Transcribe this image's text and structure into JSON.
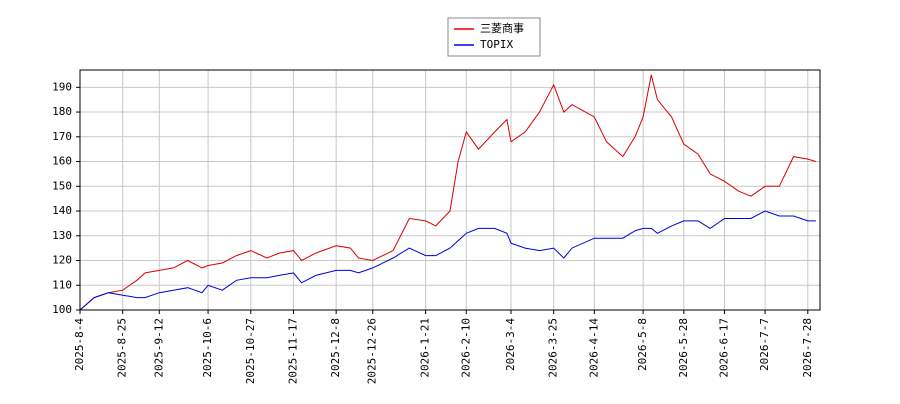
{
  "chart_data": {
    "type": "line",
    "x": [
      "2025-8-4",
      "2025-8-11",
      "2025-8-18",
      "2025-8-25",
      "2025-9-1",
      "2025-9-5",
      "2025-9-12",
      "2025-9-19",
      "2025-9-26",
      "2025-10-3",
      "2025-10-6",
      "2025-10-13",
      "2025-10-20",
      "2025-10-27",
      "2025-11-4",
      "2025-11-10",
      "2025-11-17",
      "2025-11-21",
      "2025-11-28",
      "2025-12-8",
      "2025-12-15",
      "2025-12-19",
      "2025-12-26",
      "2026-1-5",
      "2026-1-13",
      "2026-1-21",
      "2026-1-26",
      "2026-2-2",
      "2026-2-6",
      "2026-2-10",
      "2026-2-16",
      "2026-2-24",
      "2026-3-2",
      "2026-3-4",
      "2026-3-11",
      "2026-3-18",
      "2026-3-25",
      "2026-3-30",
      "2026-4-3",
      "2026-4-14",
      "2026-4-20",
      "2026-4-28",
      "2026-5-4",
      "2026-5-8",
      "2026-5-12",
      "2026-5-15",
      "2026-5-22",
      "2026-5-28",
      "2026-6-4",
      "2026-6-10",
      "2026-6-17",
      "2026-6-24",
      "2026-6-30",
      "2026-7-7",
      "2026-7-14",
      "2026-7-21",
      "2026-7-28",
      "2026-8-1"
    ],
    "series": [
      {
        "name": "三菱商事",
        "color": "#dd0000",
        "values": [
          100,
          105,
          107,
          108,
          112,
          115,
          116,
          117,
          120,
          117,
          118,
          119,
          122,
          124,
          121,
          123,
          124,
          120,
          123,
          126,
          125,
          121,
          120,
          124,
          137,
          136,
          134,
          140,
          160,
          172,
          165,
          172,
          177,
          168,
          172,
          180,
          191,
          180,
          183,
          178,
          168,
          162,
          170,
          178,
          195,
          185,
          178,
          167,
          163,
          155,
          152,
          148,
          146,
          150,
          150,
          162,
          161,
          160
        ]
      },
      {
        "name": "TOPIX",
        "color": "#0000dd",
        "values": [
          100,
          105,
          107,
          106,
          105,
          105,
          107,
          108,
          109,
          107,
          110,
          108,
          112,
          113,
          113,
          114,
          115,
          111,
          114,
          116,
          116,
          115,
          117,
          121,
          125,
          122,
          122,
          125,
          128,
          131,
          133,
          133,
          131,
          127,
          125,
          124,
          125,
          121,
          125,
          129,
          129,
          129,
          132,
          133,
          133,
          131,
          134,
          136,
          136,
          133,
          137,
          137,
          137,
          140,
          138,
          138,
          136,
          136
        ]
      }
    ],
    "xlim": [
      "2025-8-4",
      "2026-8-3"
    ],
    "xticks": [
      "2025-8-4",
      "2025-8-25",
      "2025-9-12",
      "2025-10-6",
      "2025-10-27",
      "2025-11-17",
      "2025-12-8",
      "2025-12-26",
      "2026-1-21",
      "2026-2-10",
      "2026-3-4",
      "2026-3-25",
      "2026-4-14",
      "2026-5-8",
      "2026-5-28",
      "2026-6-17",
      "2026-7-7",
      "2026-7-28"
    ],
    "ylim": [
      100,
      197
    ],
    "yticks": [
      100,
      110,
      120,
      130,
      140,
      150,
      160,
      170,
      180,
      190
    ],
    "grid": true
  }
}
